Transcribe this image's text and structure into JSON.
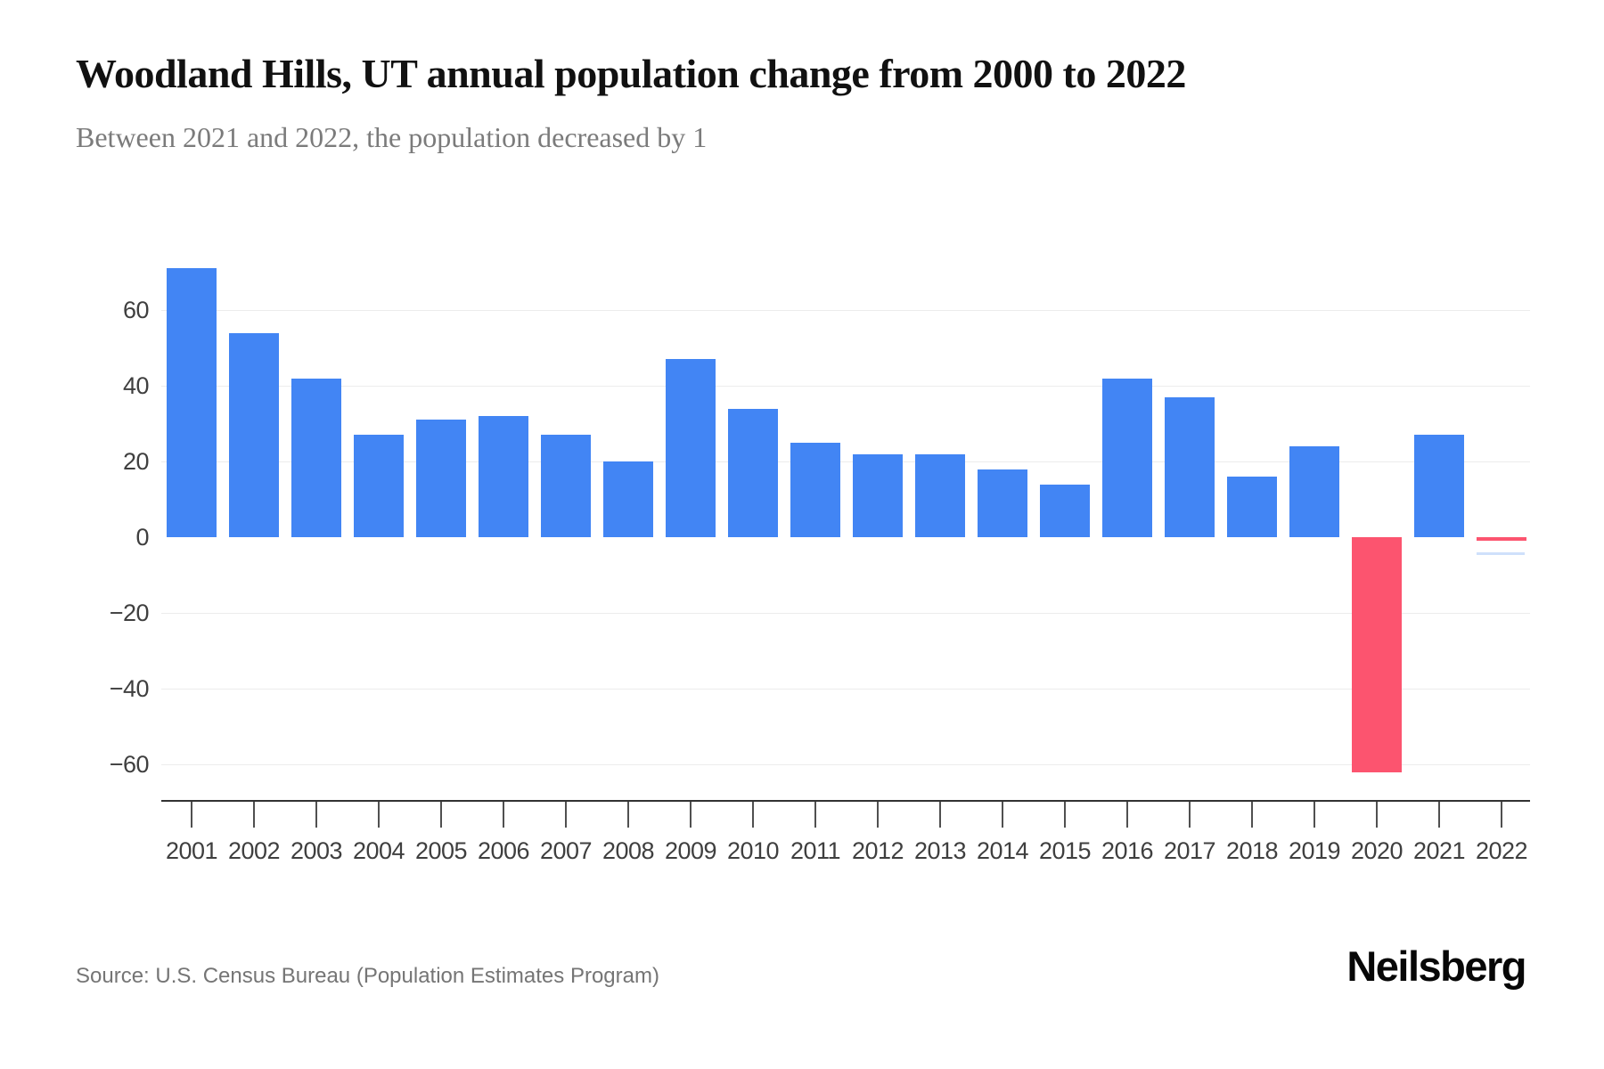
{
  "chart_data": {
    "type": "bar",
    "title": "Woodland Hills, UT annual population change from 2000 to 2022",
    "subtitle": "Between 2021 and 2022, the population decreased by 1",
    "categories": [
      "2001",
      "2002",
      "2003",
      "2004",
      "2005",
      "2006",
      "2007",
      "2008",
      "2009",
      "2010",
      "2011",
      "2012",
      "2013",
      "2014",
      "2015",
      "2016",
      "2017",
      "2018",
      "2019",
      "2020",
      "2021",
      "2022"
    ],
    "series": [
      {
        "name": "Annual population change",
        "values": [
          71,
          54,
          42,
          27,
          31,
          32,
          27,
          20,
          47,
          34,
          25,
          22,
          22,
          18,
          14,
          42,
          37,
          16,
          24,
          -62,
          27,
          -1
        ]
      }
    ],
    "xlabel": "",
    "ylabel": "",
    "ylim": [
      -70,
      75
    ],
    "y_ticks": [
      60,
      40,
      20,
      0,
      -20,
      -40,
      -60
    ],
    "y_tick_labels": [
      "60",
      "40",
      "20",
      "0",
      "−20",
      "−40",
      "−60"
    ],
    "grid": true,
    "legend": false,
    "bar_color_positive": "#4285F4",
    "bar_color_negative": "#FC546F",
    "gridline_color": "#ececec",
    "axis_color": "#323232"
  },
  "footer": {
    "source": "Source: U.S. Census Bureau (Population Estimates Program)",
    "brand": "Neilsberg"
  }
}
